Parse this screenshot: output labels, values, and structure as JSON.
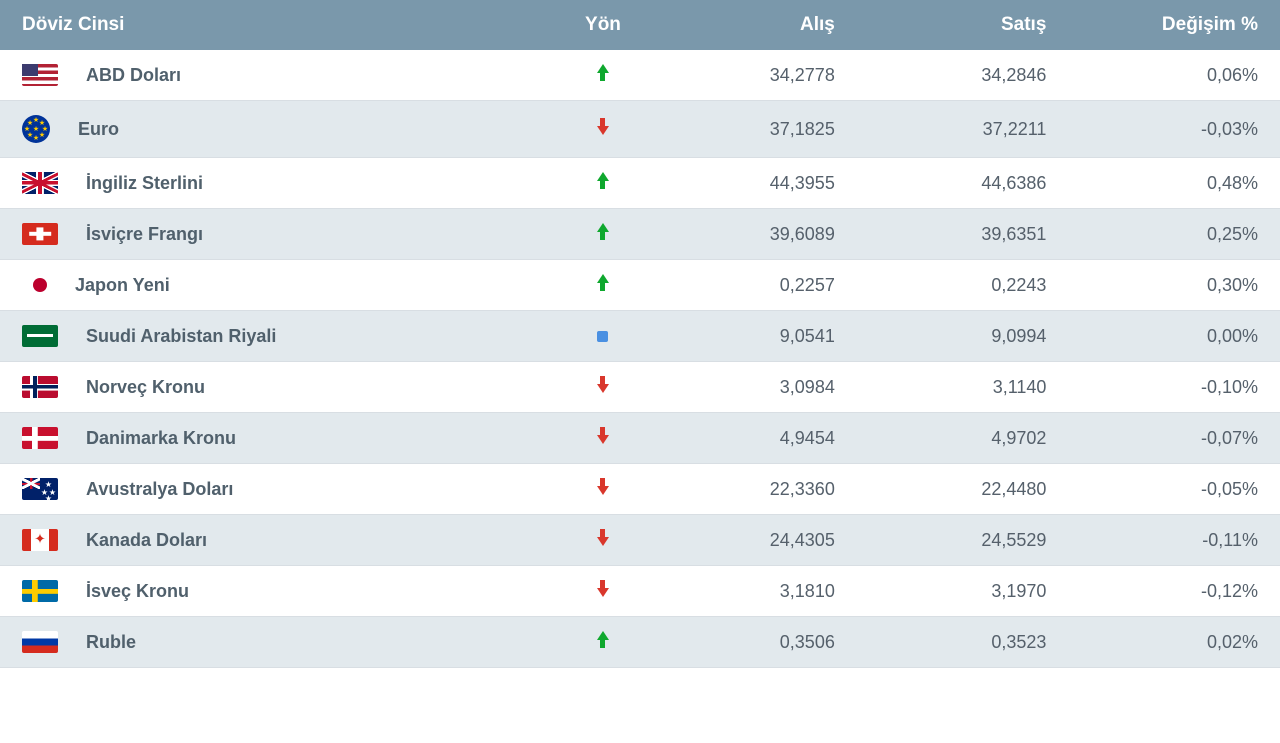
{
  "table": {
    "type": "table",
    "header_bg": "#7a98ab",
    "header_fg": "#ffffff",
    "row_colors": {
      "odd": "#ffffff",
      "even": "#e2e9ed",
      "border": "#d8dee3"
    },
    "text_color": "#50606c",
    "arrow_colors": {
      "up": "#0fa82e",
      "down": "#d9372c",
      "neutral": "#4a90e2"
    },
    "font_family": "Arial",
    "header_fontsize_pt": 14,
    "body_fontsize_pt": 13,
    "columns": [
      {
        "key": "name",
        "label": "Döviz Cinsi",
        "align": "left"
      },
      {
        "key": "dir",
        "label": "Yön",
        "align": "center"
      },
      {
        "key": "buy",
        "label": "Alış",
        "align": "right"
      },
      {
        "key": "sell",
        "label": "Satış",
        "align": "right"
      },
      {
        "key": "change",
        "label": "Değişim %",
        "align": "right"
      }
    ],
    "rows": [
      {
        "flag": "us",
        "name": "ABD Doları",
        "dir": "up",
        "buy": "34,2778",
        "sell": "34,2846",
        "change": "0,06%"
      },
      {
        "flag": "eu",
        "name": "Euro",
        "dir": "down",
        "buy": "37,1825",
        "sell": "37,2211",
        "change": "-0,03%"
      },
      {
        "flag": "gb",
        "name": "İngiliz Sterlini",
        "dir": "up",
        "buy": "44,3955",
        "sell": "44,6386",
        "change": "0,48%"
      },
      {
        "flag": "ch",
        "name": "İsviçre Frangı",
        "dir": "up",
        "buy": "39,6089",
        "sell": "39,6351",
        "change": "0,25%"
      },
      {
        "flag": "jp",
        "name": "Japon Yeni",
        "dir": "up",
        "buy": "0,2257",
        "sell": "0,2243",
        "change": "0,30%"
      },
      {
        "flag": "sa",
        "name": "Suudi Arabistan Riyali",
        "dir": "neutral",
        "buy": "9,0541",
        "sell": "9,0994",
        "change": "0,00%"
      },
      {
        "flag": "no",
        "name": "Norveç Kronu",
        "dir": "down",
        "buy": "3,0984",
        "sell": "3,1140",
        "change": "-0,10%"
      },
      {
        "flag": "dk",
        "name": "Danimarka Kronu",
        "dir": "down",
        "buy": "4,9454",
        "sell": "4,9702",
        "change": "-0,07%"
      },
      {
        "flag": "au",
        "name": "Avustralya Doları",
        "dir": "down",
        "buy": "22,3360",
        "sell": "22,4480",
        "change": "-0,05%"
      },
      {
        "flag": "ca",
        "name": "Kanada Doları",
        "dir": "down",
        "buy": "24,4305",
        "sell": "24,5529",
        "change": "-0,11%"
      },
      {
        "flag": "se",
        "name": "İsveç Kronu",
        "dir": "down",
        "buy": "3,1810",
        "sell": "3,1970",
        "change": "-0,12%"
      },
      {
        "flag": "ru",
        "name": "Ruble",
        "dir": "up",
        "buy": "0,3506",
        "sell": "0,3523",
        "change": "0,02%"
      }
    ]
  }
}
